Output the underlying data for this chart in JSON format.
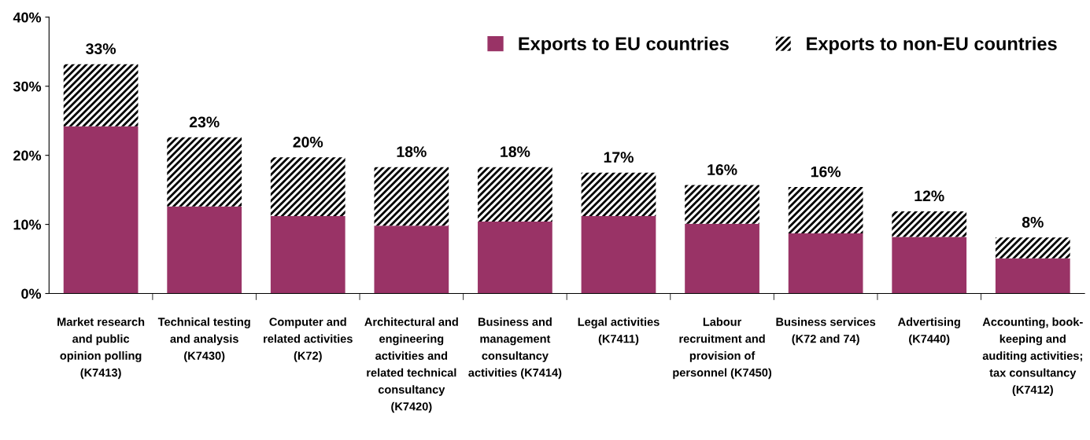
{
  "chart_data": {
    "type": "bar",
    "stacked": true,
    "categories": [
      "Market research\nand public\nopinion polling\n(K7413)",
      "Technical testing\nand analysis\n(K7430)",
      "Computer and\nrelated activities\n(K72)",
      "Architectural and\nengineering\nactivities and\nrelated technical\nconsultancy\n(K7420)",
      "Business and\nmanagement\nconsultancy\nactivities (K7414)",
      "Legal activities\n(K7411)",
      "Labour\nrecruitment and\nprovision of\npersonnel (K7450)",
      "Business services\n(K72 and 74)",
      "Advertising\n(K7440)",
      "Accounting, book-\nkeeping and\nauditing activities;\ntax consultancy\n(K7412)"
    ],
    "series": [
      {
        "name": "Exports to EU countries",
        "color": "#993366",
        "values": [
          24.2,
          12.6,
          11.2,
          9.8,
          10.4,
          11.2,
          10.1,
          8.7,
          8.2,
          5.1
        ]
      },
      {
        "name": "Exports to non-EU countries",
        "color": "#000000",
        "values": [
          9.0,
          10.0,
          8.5,
          8.5,
          7.9,
          6.3,
          5.6,
          6.7,
          3.7,
          3.0
        ]
      }
    ],
    "totals": [
      "33%",
      "23%",
      "20%",
      "18%",
      "18%",
      "17%",
      "16%",
      "16%",
      "12%",
      "8%"
    ],
    "ylim": [
      0,
      40
    ],
    "yticks": [
      {
        "value": 0,
        "label": "0%"
      },
      {
        "value": 10,
        "label": "10%"
      },
      {
        "value": 20,
        "label": "20%"
      },
      {
        "value": 30,
        "label": "30%"
      },
      {
        "value": 40,
        "label": "40%"
      }
    ],
    "grid": false,
    "legend": "top right"
  }
}
